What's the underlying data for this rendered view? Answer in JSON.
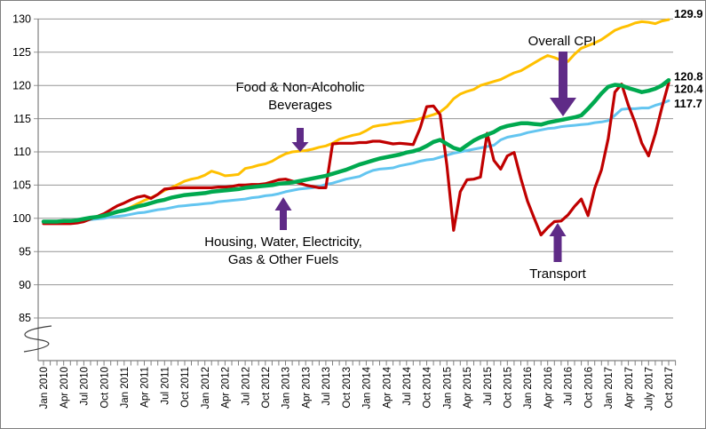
{
  "figure": {
    "background": "#FFFFFF",
    "border_color": "#7F7F7F",
    "gridline_color": "#969696",
    "axis_color": "#7F7F7F",
    "text_color": "#000000",
    "annotation_arrow_color": "#5F2B87"
  },
  "chart_data": {
    "type": "line",
    "title": "",
    "xlabel": "",
    "ylabel": "",
    "x_axis": {
      "unit": "month",
      "start": "Jan 2010",
      "end": "Oct 2017",
      "n_points": 94,
      "minor_tick_every_month": true,
      "label_every_n_months": 3,
      "label_rotation_deg": 90,
      "tick_labels": [
        "Jan 2010",
        "Apr 2010",
        "Jul 2010",
        "Oct 2010",
        "Jan 2011",
        "Apr 2011",
        "Jul 2011",
        "Oct 2011",
        "Jan 2012",
        "Apr 2012",
        "Jul 2012",
        "Oct 2012",
        "Jan 2013",
        "Apr 2013",
        "Jul 2013",
        "Oct 2013",
        "Jan 2014",
        "Apr 2014",
        "Jul 2014",
        "Oct 2014",
        "Jan 2015",
        "Apr 2015",
        "Jul 2015",
        "Oct 2015",
        "Jan 2016",
        "Apr 2016",
        "Jul 2016",
        "Oct 2016",
        "Jan 2017",
        "Apr 2017",
        "July 2017",
        "Oct 2017"
      ]
    },
    "y_axis": {
      "ticks": [
        85,
        90,
        95,
        100,
        105,
        110,
        115,
        120,
        125,
        130
      ],
      "range_shown": [
        85,
        130
      ],
      "axis_break_below": 85,
      "gridlines": true,
      "legend_position": "none"
    },
    "series": [
      {
        "name": "Food & Non-Alcoholic Beverages",
        "color": "#FFC000",
        "line_width": 3,
        "end_label": "129.9",
        "values": [
          99.4,
          99.4,
          99.4,
          99.5,
          99.5,
          99.6,
          99.7,
          100.0,
          100.1,
          100.3,
          100.6,
          100.9,
          101.2,
          101.7,
          102.2,
          102.7,
          103.1,
          103.6,
          104.2,
          104.6,
          105.1,
          105.6,
          105.9,
          106.1,
          106.5,
          107.1,
          106.8,
          106.4,
          106.5,
          106.6,
          107.5,
          107.7,
          108.0,
          108.2,
          108.6,
          109.2,
          109.7,
          110.0,
          110.1,
          110.2,
          110.4,
          110.7,
          110.9,
          111.3,
          111.9,
          112.2,
          112.5,
          112.7,
          113.2,
          113.8,
          114.0,
          114.1,
          114.3,
          114.4,
          114.6,
          114.7,
          115.0,
          115.3,
          115.6,
          116.0,
          116.8,
          118.0,
          118.7,
          119.1,
          119.4,
          120.0,
          120.3,
          120.6,
          120.9,
          121.4,
          121.9,
          122.2,
          122.8,
          123.4,
          124.0,
          124.5,
          124.2,
          123.8,
          123.6,
          124.7,
          125.6,
          126.0,
          126.4,
          126.9,
          127.6,
          128.3,
          128.7,
          129.0,
          129.4,
          129.6,
          129.5,
          129.3,
          129.7,
          129.9
        ]
      },
      {
        "name": "Housing, Water, Electricity, Gas & Other Fuels",
        "color": "#63C5F0",
        "line_width": 3,
        "end_label": "117.7",
        "values": [
          99.3,
          99.3,
          99.3,
          99.4,
          99.4,
          99.5,
          99.6,
          99.8,
          99.9,
          100.0,
          100.2,
          100.3,
          100.4,
          100.6,
          100.8,
          100.9,
          101.1,
          101.3,
          101.4,
          101.6,
          101.8,
          101.9,
          102.0,
          102.1,
          102.2,
          102.3,
          102.5,
          102.6,
          102.7,
          102.8,
          102.9,
          103.1,
          103.2,
          103.4,
          103.5,
          103.7,
          104.0,
          104.2,
          104.4,
          104.5,
          104.6,
          104.8,
          105.1,
          105.3,
          105.6,
          105.9,
          106.1,
          106.3,
          106.8,
          107.2,
          107.4,
          107.5,
          107.6,
          107.9,
          108.1,
          108.3,
          108.6,
          108.8,
          108.9,
          109.2,
          109.5,
          109.8,
          110.0,
          110.2,
          110.4,
          110.6,
          110.8,
          111.0,
          111.8,
          112.2,
          112.4,
          112.6,
          112.9,
          113.1,
          113.3,
          113.5,
          113.6,
          113.8,
          113.9,
          114.0,
          114.1,
          114.2,
          114.4,
          114.5,
          114.7,
          115.5,
          116.4,
          116.5,
          116.5,
          116.6,
          116.6,
          117.0,
          117.3,
          117.7
        ]
      },
      {
        "name": "Transport",
        "color": "#C00000",
        "line_width": 3.2,
        "end_label": "120.4",
        "values": [
          99.2,
          99.2,
          99.2,
          99.2,
          99.2,
          99.3,
          99.5,
          99.9,
          100.3,
          100.7,
          101.3,
          101.9,
          102.3,
          102.8,
          103.2,
          103.4,
          103.0,
          103.6,
          104.4,
          104.5,
          104.6,
          104.6,
          104.6,
          104.6,
          104.6,
          104.6,
          104.7,
          104.7,
          104.8,
          105.0,
          105.0,
          105.1,
          105.1,
          105.2,
          105.5,
          105.8,
          105.9,
          105.6,
          105.3,
          105.0,
          104.8,
          104.6,
          104.6,
          111.2,
          111.3,
          111.3,
          111.3,
          111.4,
          111.4,
          111.6,
          111.6,
          111.4,
          111.2,
          111.3,
          111.2,
          111.1,
          113.5,
          116.8,
          116.9,
          115.6,
          108.0,
          98.2,
          104.0,
          105.8,
          105.9,
          106.2,
          112.8,
          108.7,
          107.4,
          109.4,
          109.9,
          106.0,
          102.6,
          100.0,
          97.5,
          98.6,
          99.5,
          99.6,
          100.5,
          101.8,
          102.9,
          100.4,
          104.5,
          107.3,
          112.0,
          119.0,
          120.2,
          117.0,
          114.4,
          111.3,
          109.4,
          112.7,
          116.7,
          120.4
        ]
      },
      {
        "name": "Overall CPI",
        "color": "#00A94F",
        "line_width": 4.5,
        "end_label": "120.8",
        "values": [
          99.5,
          99.5,
          99.5,
          99.6,
          99.6,
          99.7,
          99.9,
          100.1,
          100.2,
          100.4,
          100.7,
          101.0,
          101.2,
          101.5,
          101.8,
          102.0,
          102.3,
          102.6,
          102.8,
          103.1,
          103.3,
          103.5,
          103.6,
          103.7,
          103.8,
          104.0,
          104.1,
          104.2,
          104.3,
          104.4,
          104.6,
          104.7,
          104.8,
          104.9,
          105.0,
          105.2,
          105.3,
          105.4,
          105.6,
          105.8,
          106.0,
          106.2,
          106.4,
          106.7,
          107.0,
          107.3,
          107.7,
          108.1,
          108.4,
          108.7,
          109.0,
          109.2,
          109.4,
          109.6,
          109.9,
          110.1,
          110.4,
          110.9,
          111.5,
          111.8,
          111.2,
          110.6,
          110.3,
          111.0,
          111.7,
          112.2,
          112.6,
          113.0,
          113.6,
          113.9,
          114.1,
          114.3,
          114.3,
          114.2,
          114.1,
          114.4,
          114.6,
          114.8,
          115.0,
          115.2,
          115.5,
          116.5,
          117.6,
          118.8,
          119.8,
          120.1,
          120.0,
          119.6,
          119.3,
          119.0,
          119.2,
          119.5,
          120.0,
          120.8
        ]
      }
    ],
    "annotations": [
      {
        "id": "overall-cpi",
        "lines": [
          "Overall CPI"
        ],
        "arrow": "down",
        "points_to_series": "Overall CPI",
        "points_at": "Jul 2016"
      },
      {
        "id": "food",
        "lines": [
          "Food & Non-Alcoholic",
          "Beverages"
        ],
        "arrow": "down",
        "points_to_series": "Food & Non-Alcoholic Beverages",
        "points_at": "Mar 2013"
      },
      {
        "id": "housing",
        "lines": [
          "Housing, Water, Electricity,",
          "Gas & Other Fuels"
        ],
        "arrow": "up",
        "points_to_series": "Housing, Water, Electricity, Gas & Other Fuels",
        "points_at": "Jan 2013"
      },
      {
        "id": "transport",
        "lines": [
          "Transport"
        ],
        "arrow": "up",
        "points_to_series": "Transport",
        "points_at": "May 2016"
      }
    ]
  }
}
